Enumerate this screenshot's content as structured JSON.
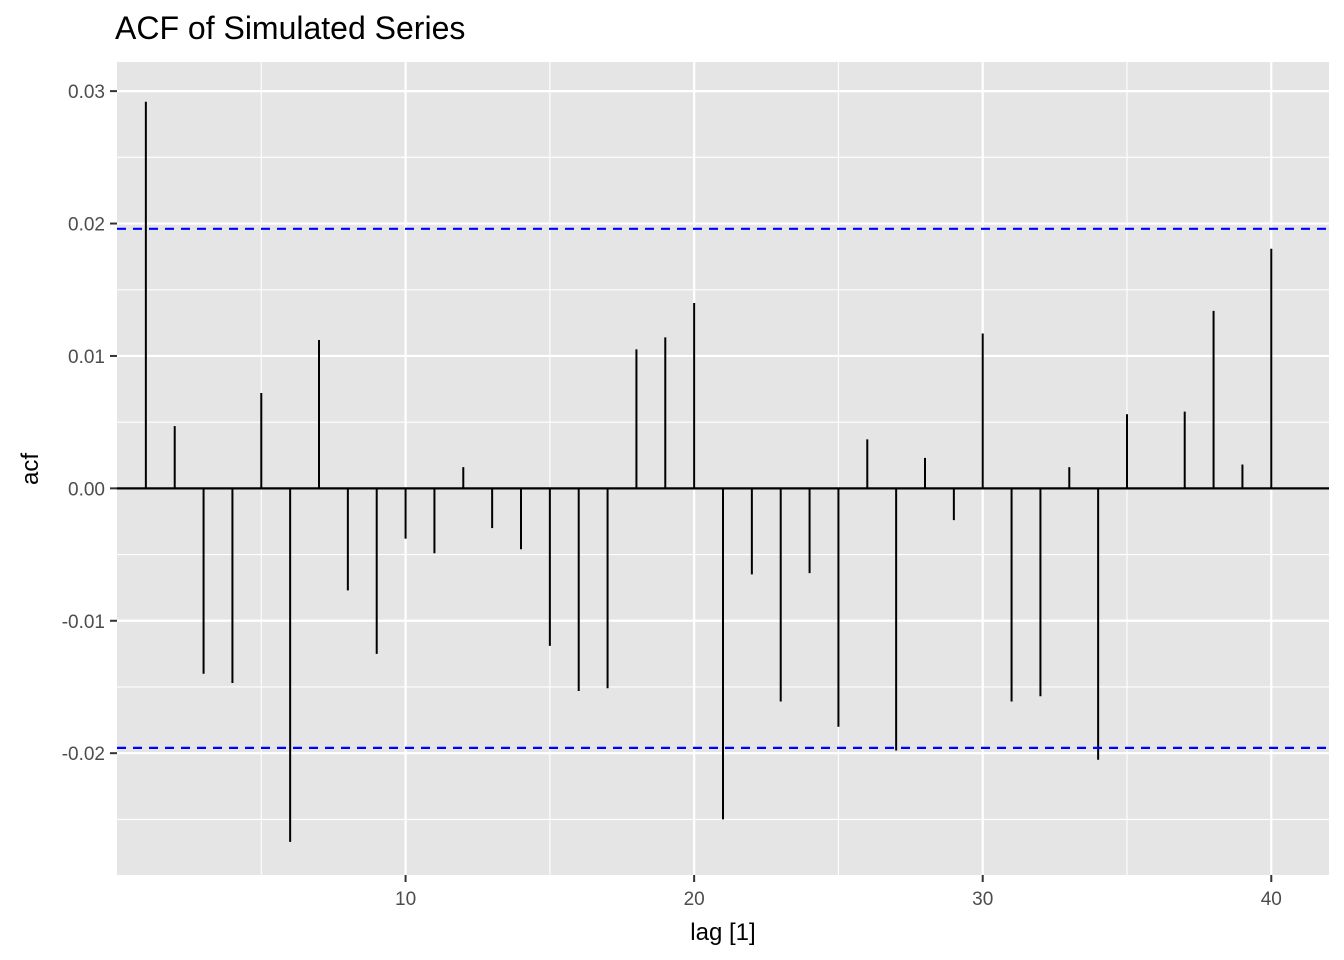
{
  "chart_data": {
    "type": "bar",
    "title": "ACF of Simulated Series",
    "xlabel": "lag [1]",
    "ylabel": "acf",
    "x_ticks": [
      10,
      20,
      30,
      40
    ],
    "y_ticks": [
      0.03,
      0.02,
      0.01,
      0.0,
      -0.01,
      -0.02
    ],
    "y_tick_labels": [
      "0.03",
      "0.02",
      "0.01",
      "0.00",
      "-0.01",
      "-0.02"
    ],
    "xlim": [
      0,
      42
    ],
    "ylim": [
      -0.0292,
      0.0322
    ],
    "grid": true,
    "confidence_bounds": [
      0.0196,
      -0.0196
    ],
    "colors": {
      "panel_background": "#e5e5e5",
      "grid": "#ffffff",
      "bars": "#000000",
      "bounds": "#0000ff"
    },
    "lags": [
      1,
      2,
      3,
      4,
      5,
      6,
      7,
      8,
      9,
      10,
      11,
      12,
      13,
      14,
      15,
      16,
      17,
      18,
      19,
      20,
      21,
      22,
      23,
      24,
      25,
      26,
      27,
      28,
      29,
      30,
      31,
      32,
      33,
      34,
      35,
      36,
      37,
      38,
      39,
      40
    ],
    "values": [
      0.0292,
      0.0047,
      -0.014,
      -0.0147,
      0.0072,
      -0.0267,
      0.0112,
      -0.0077,
      -0.0125,
      -0.0038,
      -0.0049,
      0.0016,
      -0.003,
      -0.0046,
      -0.0119,
      -0.0153,
      -0.0151,
      0.0105,
      0.0114,
      0.014,
      -0.025,
      -0.0065,
      -0.0161,
      -0.0064,
      -0.018,
      0.0037,
      -0.0198,
      0.0023,
      -0.0024,
      0.0117,
      -0.0161,
      -0.0157,
      0.0016,
      -0.0205,
      0.0056,
      0.0,
      0.0058,
      0.0134,
      0.0018,
      0.0181
    ]
  }
}
